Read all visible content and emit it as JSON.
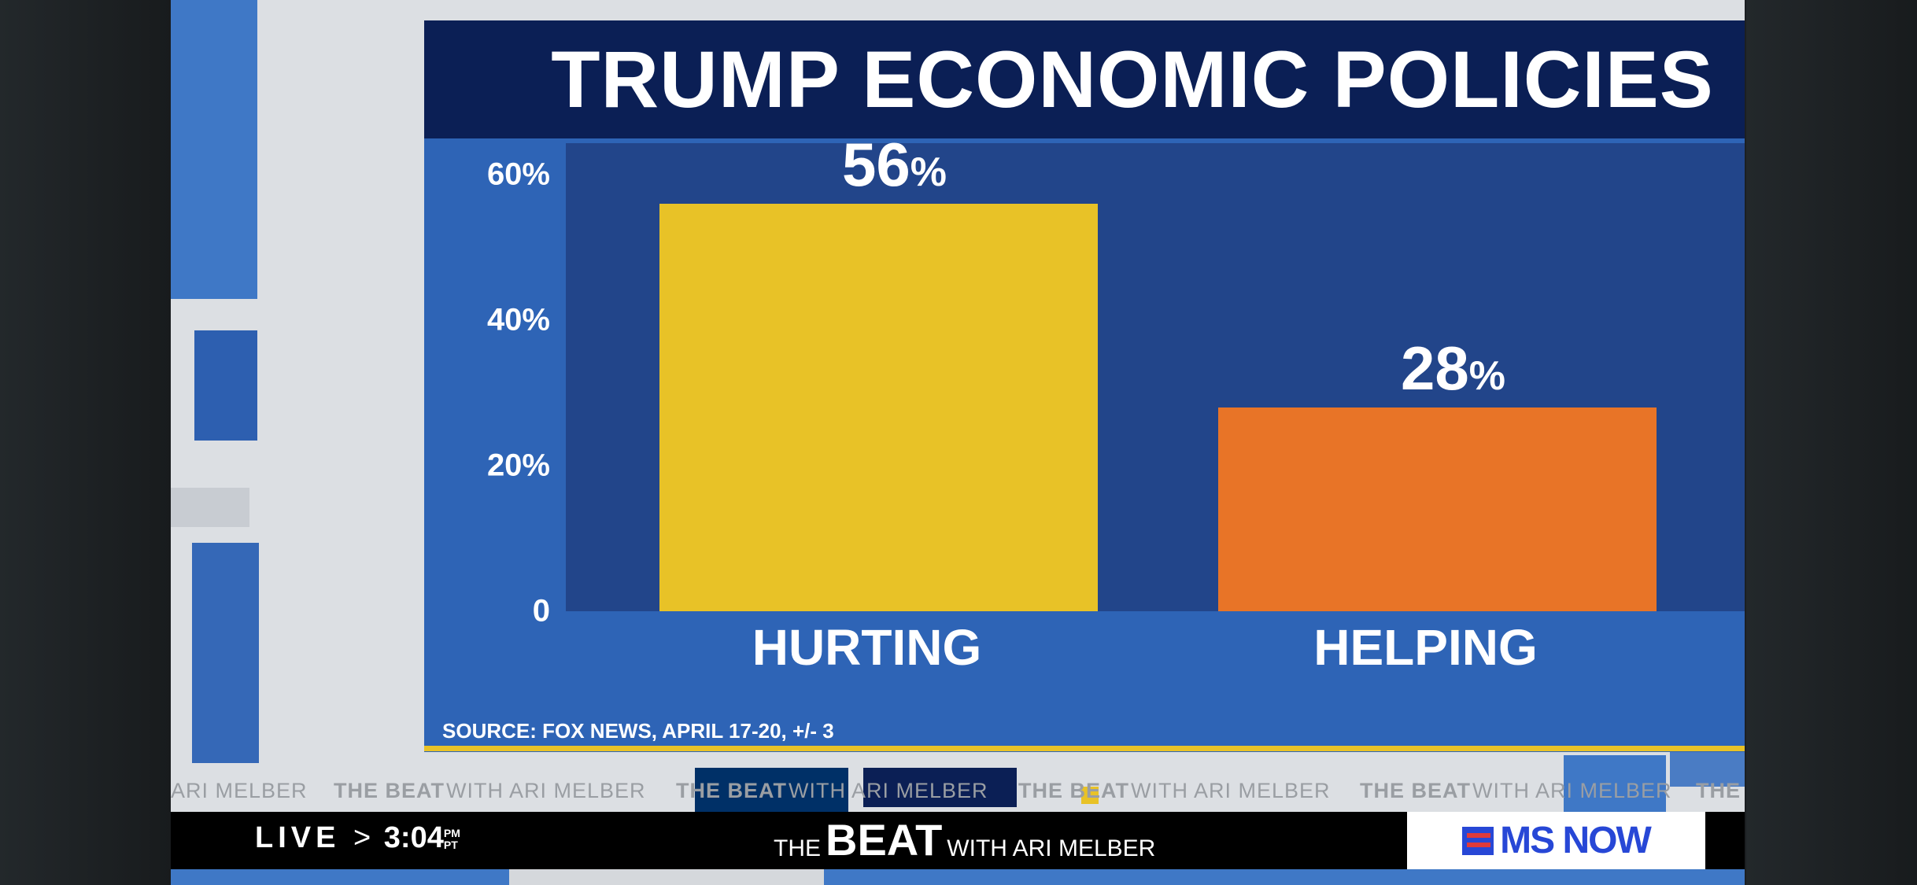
{
  "chart_data": {
    "type": "bar",
    "title": "TRUMP ECONOMIC POLICIES",
    "categories": [
      "HURTING",
      "HELPING"
    ],
    "values": [
      56,
      28
    ],
    "data_labels": [
      "56",
      "28"
    ],
    "unit": "%",
    "colors": [
      "#e8c227",
      "#e87427"
    ],
    "yticks": [
      "0",
      "20%",
      "40%",
      "60%"
    ],
    "ytick_values": [
      0,
      20,
      40,
      60
    ],
    "ylim": [
      0,
      60
    ],
    "xlabel": "",
    "ylabel": "",
    "source": "SOURCE: FOX NEWS, APRIL 17-20, +/- 3"
  },
  "ticker": {
    "segments": [
      "ARI MELBER",
      "THE BEAT",
      "WITH ARI MELBER",
      "THE BEAT",
      "WITH ARI MELBER",
      "THE BEAT",
      "WITH ARI MELBER",
      "THE BEAT",
      "WITH ARI MELBER",
      "THE"
    ]
  },
  "lower_third": {
    "live": "LIVE",
    "arrow": ">",
    "time": "3:04",
    "ampm": "PM",
    "tz": "PT",
    "show_the": "THE",
    "show_beat": "BEAT",
    "show_with": "WITH ARI MELBER",
    "network": "MS NOW"
  }
}
